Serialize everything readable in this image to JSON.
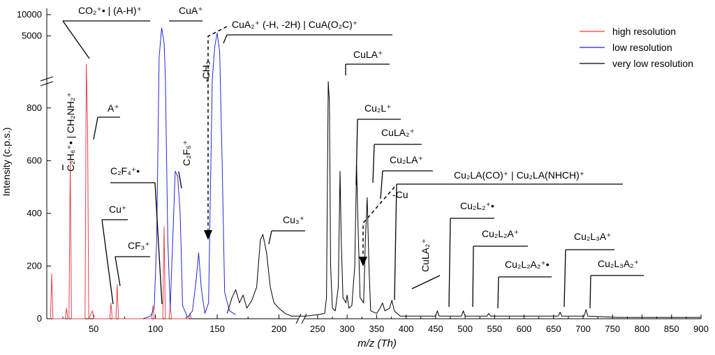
{
  "chart_data": {
    "type": "line",
    "xlabel": "m/z (Th)",
    "ylabel": "Intensity (c.p.s.)",
    "x_ticks_left": [
      50,
      100,
      150,
      200
    ],
    "x_ticks_right": [
      250,
      300,
      350,
      400,
      450,
      500,
      550,
      600,
      650,
      700,
      750,
      800,
      850,
      900
    ],
    "y_ticks": [
      0,
      200,
      400,
      600,
      800
    ],
    "y_ticks_upper": [
      5000,
      10000
    ],
    "legend": {
      "placement": "top-right",
      "entries": [
        {
          "name": "high resolution",
          "color": "#e8414a"
        },
        {
          "name": "low resolution",
          "color": "#1f29d6"
        },
        {
          "name": "very low resolution",
          "color": "#000000"
        }
      ]
    },
    "series": [
      {
        "name": "high resolution",
        "color": "#e8414a",
        "points": [
          [
            15,
            0
          ],
          [
            16,
            170
          ],
          [
            17,
            0
          ],
          [
            27,
            0
          ],
          [
            28,
            40
          ],
          [
            29,
            0
          ],
          [
            30,
            0
          ],
          [
            31,
            600
          ],
          [
            32,
            0
          ],
          [
            43,
            0
          ],
          [
            44,
            2000
          ],
          [
            45,
            740
          ],
          [
            46,
            0
          ],
          [
            49,
            30
          ],
          [
            50,
            0
          ],
          [
            63,
            0
          ],
          [
            64,
            60
          ],
          [
            65,
            0
          ],
          [
            68,
            0
          ],
          [
            69,
            130
          ],
          [
            70,
            0
          ],
          [
            97,
            0
          ],
          [
            98,
            50
          ],
          [
            99,
            0
          ],
          [
            106,
            0
          ],
          [
            107,
            350
          ],
          [
            108,
            0
          ],
          [
            111,
            0
          ],
          [
            112,
            50
          ],
          [
            113,
            0
          ],
          [
            127,
            0
          ],
          [
            128,
            20
          ],
          [
            129,
            0
          ]
        ]
      },
      {
        "name": "low resolution",
        "color": "#1f29d6",
        "points": [
          [
            90,
            0
          ],
          [
            96,
            10
          ],
          [
            99,
            40
          ],
          [
            101,
            300
          ],
          [
            103,
            2500
          ],
          [
            105,
            6500
          ],
          [
            107,
            4000
          ],
          [
            108,
            1200
          ],
          [
            110,
            300
          ],
          [
            112,
            40
          ],
          [
            114,
            300
          ],
          [
            116,
            560
          ],
          [
            118,
            540
          ],
          [
            120,
            400
          ],
          [
            122,
            50
          ],
          [
            126,
            5
          ],
          [
            130,
            30
          ],
          [
            133,
            150
          ],
          [
            135,
            250
          ],
          [
            137,
            120
          ],
          [
            140,
            20
          ],
          [
            143,
            60
          ],
          [
            146,
            1000
          ],
          [
            148,
            3500
          ],
          [
            150,
            5500
          ],
          [
            152,
            3000
          ],
          [
            154,
            600
          ],
          [
            156,
            100
          ],
          [
            160,
            30
          ],
          [
            165,
            15
          ]
        ]
      },
      {
        "name": "very low resolution",
        "color": "#000000",
        "points": [
          [
            158,
            20
          ],
          [
            162,
            80
          ],
          [
            165,
            110
          ],
          [
            168,
            60
          ],
          [
            171,
            90
          ],
          [
            174,
            40
          ],
          [
            178,
            70
          ],
          [
            182,
            120
          ],
          [
            185,
            300
          ],
          [
            187,
            320
          ],
          [
            190,
            250
          ],
          [
            193,
            120
          ],
          [
            196,
            60
          ],
          [
            200,
            40
          ],
          [
            205,
            20
          ],
          [
            210,
            10
          ],
          [
            230,
            10
          ],
          [
            250,
            15
          ],
          [
            262,
            20
          ],
          [
            265,
            80
          ],
          [
            268,
            900
          ],
          [
            270,
            820
          ],
          [
            272,
            200
          ],
          [
            275,
            40
          ],
          [
            280,
            30
          ],
          [
            285,
            120
          ],
          [
            288,
            560
          ],
          [
            290,
            300
          ],
          [
            293,
            80
          ],
          [
            298,
            60
          ],
          [
            300,
            90
          ],
          [
            303,
            40
          ],
          [
            308,
            50
          ],
          [
            313,
            200
          ],
          [
            316,
            580
          ],
          [
            318,
            400
          ],
          [
            322,
            80
          ],
          [
            328,
            60
          ],
          [
            331,
            300
          ],
          [
            334,
            460
          ],
          [
            337,
            200
          ],
          [
            340,
            30
          ],
          [
            350,
            20
          ],
          [
            356,
            40
          ],
          [
            360,
            60
          ],
          [
            364,
            30
          ],
          [
            372,
            40
          ],
          [
            376,
            70
          ],
          [
            380,
            30
          ],
          [
            390,
            10
          ],
          [
            450,
            10
          ],
          [
            453,
            30
          ],
          [
            456,
            10
          ],
          [
            494,
            10
          ],
          [
            497,
            30
          ],
          [
            500,
            10
          ],
          [
            537,
            10
          ],
          [
            540,
            20
          ],
          [
            543,
            10
          ],
          [
            658,
            10
          ],
          [
            661,
            25
          ],
          [
            664,
            10
          ],
          [
            702,
            10
          ],
          [
            705,
            35
          ],
          [
            708,
            10
          ],
          [
            760,
            5
          ],
          [
            900,
            5
          ]
        ]
      }
    ],
    "annotations": [
      {
        "text": "CO₂⁺• | (A-H)⁺"
      },
      {
        "text": "CuA⁺"
      },
      {
        "text": "CuA₂⁺ (-H, -2H) | CuA(O₂C)⁺"
      },
      {
        "text": "CuLA⁺"
      },
      {
        "text": "A⁺"
      },
      {
        "text": "C₂H₆⁺• | CH₂NH₂⁺"
      },
      {
        "text": "-CH₃"
      },
      {
        "text": "C₂F₄⁺•"
      },
      {
        "text": "C₂F₅⁺"
      },
      {
        "text": "Cu⁺"
      },
      {
        "text": "CF₃⁺"
      },
      {
        "text": "Cu₃⁺"
      },
      {
        "text": "Cu₂L⁺"
      },
      {
        "text": "CuLA₂⁺"
      },
      {
        "text": "Cu₂LA⁺"
      },
      {
        "text": "-Cu"
      },
      {
        "text": "Cu₂LA(CO)⁺ | Cu₂LA(NHCH)⁺"
      },
      {
        "text": "CuLA₂⁺"
      },
      {
        "text": "Cu₂L₂⁺•"
      },
      {
        "text": "Cu₂L₂A⁺"
      },
      {
        "text": "Cu₂L₂A₂⁺•"
      },
      {
        "text": "Cu₂L₃A⁺"
      },
      {
        "text": "Cu₂L₃A₂⁺"
      }
    ]
  }
}
